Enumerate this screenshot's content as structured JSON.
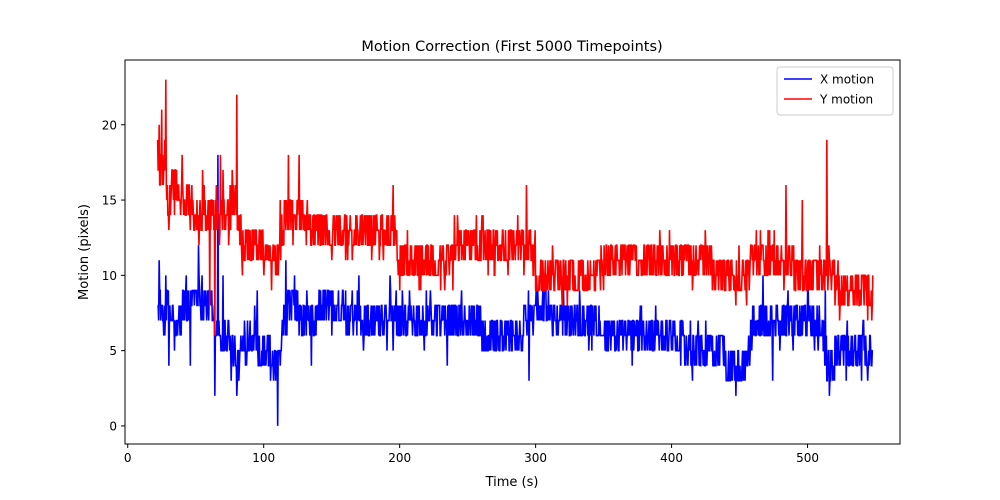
{
  "chart_data": {
    "type": "line",
    "title": "Motion Correction (First 5000 Timepoints)",
    "xlabel": "Time (s)",
    "ylabel": "Motion (pixels)",
    "xlim": [
      -2,
      568
    ],
    "ylim": [
      -1.2,
      24.3
    ],
    "xticks": [
      0,
      100,
      200,
      300,
      400,
      500
    ],
    "yticks": [
      0,
      5,
      10,
      15,
      20
    ],
    "grid": false,
    "legend_position": "top-right",
    "x_range": [
      22,
      548
    ],
    "series": [
      {
        "name": "X motion",
        "color": "#0000ff",
        "profile": [
          [
            22,
            8
          ],
          [
            25,
            7
          ],
          [
            30,
            8
          ],
          [
            35,
            6
          ],
          [
            40,
            7.5
          ],
          [
            45,
            8
          ],
          [
            50,
            9
          ],
          [
            55,
            8.5
          ],
          [
            60,
            8
          ],
          [
            65,
            7
          ],
          [
            70,
            6
          ],
          [
            75,
            6
          ],
          [
            80,
            4
          ],
          [
            85,
            5
          ],
          [
            90,
            6
          ],
          [
            95,
            5.5
          ],
          [
            100,
            5
          ],
          [
            105,
            4.5
          ],
          [
            110,
            4
          ],
          [
            115,
            7
          ],
          [
            120,
            8
          ],
          [
            125,
            7.5
          ],
          [
            130,
            7
          ],
          [
            140,
            7.5
          ],
          [
            150,
            7.5
          ],
          [
            160,
            7.5
          ],
          [
            170,
            7
          ],
          [
            180,
            7
          ],
          [
            190,
            7
          ],
          [
            195,
            8
          ],
          [
            200,
            7
          ],
          [
            210,
            6.5
          ],
          [
            220,
            7
          ],
          [
            230,
            7
          ],
          [
            240,
            6.5
          ],
          [
            250,
            6.5
          ],
          [
            260,
            6.5
          ],
          [
            270,
            6
          ],
          [
            280,
            6
          ],
          [
            290,
            6
          ],
          [
            295,
            8
          ],
          [
            300,
            7.5
          ],
          [
            310,
            7.5
          ],
          [
            320,
            7
          ],
          [
            330,
            6.5
          ],
          [
            340,
            6.5
          ],
          [
            350,
            6.5
          ],
          [
            360,
            6
          ],
          [
            370,
            6
          ],
          [
            380,
            6
          ],
          [
            390,
            6
          ],
          [
            400,
            6
          ],
          [
            410,
            5.5
          ],
          [
            420,
            5
          ],
          [
            430,
            4.5
          ],
          [
            440,
            4.5
          ],
          [
            450,
            4
          ],
          [
            455,
            4
          ],
          [
            460,
            7
          ],
          [
            470,
            7
          ],
          [
            480,
            7
          ],
          [
            490,
            7.5
          ],
          [
            500,
            7
          ],
          [
            510,
            7
          ],
          [
            515,
            4
          ],
          [
            520,
            4.5
          ],
          [
            530,
            4.5
          ],
          [
            540,
            4.5
          ],
          [
            548,
            4.5
          ]
        ],
        "spikes": [
          [
            23,
            11
          ],
          [
            30,
            4
          ],
          [
            46,
            4
          ],
          [
            52,
            12
          ],
          [
            64,
            2
          ],
          [
            66,
            18
          ],
          [
            70,
            10
          ],
          [
            76,
            3
          ],
          [
            80,
            2
          ],
          [
            95,
            9
          ],
          [
            105,
            3
          ],
          [
            110,
            0
          ],
          [
            116,
            11
          ],
          [
            135,
            4
          ],
          [
            170,
            10
          ],
          [
            195,
            5
          ],
          [
            235,
            4
          ],
          [
            295,
            3
          ],
          [
            320,
            10
          ],
          [
            371,
            13
          ],
          [
            371,
            4
          ],
          [
            415,
            3
          ],
          [
            447,
            2
          ],
          [
            467,
            10
          ],
          [
            474,
            3
          ],
          [
            500,
            10
          ],
          [
            513,
            9
          ],
          [
            516,
            2
          ],
          [
            544,
            3
          ]
        ]
      },
      {
        "name": "Y motion",
        "color": "#ff0000",
        "profile": [
          [
            22,
            18
          ],
          [
            25,
            17
          ],
          [
            30,
            15
          ],
          [
            35,
            16
          ],
          [
            40,
            14.5
          ],
          [
            45,
            15
          ],
          [
            50,
            14
          ],
          [
            55,
            13.5
          ],
          [
            60,
            13.5
          ],
          [
            65,
            13.5
          ],
          [
            70,
            14
          ],
          [
            75,
            14.5
          ],
          [
            80,
            14.5
          ],
          [
            85,
            11.5
          ],
          [
            90,
            11.5
          ],
          [
            95,
            11.5
          ],
          [
            100,
            11.5
          ],
          [
            105,
            11
          ],
          [
            110,
            11
          ],
          [
            115,
            13.5
          ],
          [
            120,
            14
          ],
          [
            125,
            13.5
          ],
          [
            130,
            14
          ],
          [
            135,
            13
          ],
          [
            140,
            13
          ],
          [
            150,
            12.5
          ],
          [
            160,
            12.5
          ],
          [
            170,
            12.5
          ],
          [
            180,
            12.5
          ],
          [
            190,
            12.5
          ],
          [
            197,
            13
          ],
          [
            200,
            10.5
          ],
          [
            210,
            10.5
          ],
          [
            220,
            11
          ],
          [
            230,
            11
          ],
          [
            240,
            11.5
          ],
          [
            250,
            11.5
          ],
          [
            260,
            11.5
          ],
          [
            270,
            11.5
          ],
          [
            280,
            11.5
          ],
          [
            290,
            11.5
          ],
          [
            295,
            12.5
          ],
          [
            300,
            10.5
          ],
          [
            310,
            10
          ],
          [
            320,
            10
          ],
          [
            330,
            10
          ],
          [
            340,
            10
          ],
          [
            350,
            10.5
          ],
          [
            360,
            10.5
          ],
          [
            370,
            10.5
          ],
          [
            380,
            10.5
          ],
          [
            390,
            10.5
          ],
          [
            400,
            10.5
          ],
          [
            410,
            10.5
          ],
          [
            420,
            10.5
          ],
          [
            430,
            10.5
          ],
          [
            440,
            10
          ],
          [
            450,
            10
          ],
          [
            455,
            10
          ],
          [
            460,
            11
          ],
          [
            470,
            10.5
          ],
          [
            480,
            11
          ],
          [
            490,
            10.5
          ],
          [
            500,
            10
          ],
          [
            510,
            10
          ],
          [
            515,
            10.5
          ],
          [
            520,
            9.5
          ],
          [
            530,
            9
          ],
          [
            540,
            9
          ],
          [
            548,
            9.5
          ]
        ],
        "spikes": [
          [
            23,
            20
          ],
          [
            25,
            21
          ],
          [
            27,
            19
          ],
          [
            28,
            23
          ],
          [
            30,
            13
          ],
          [
            40,
            18
          ],
          [
            46,
            13
          ],
          [
            55,
            17
          ],
          [
            60,
            8
          ],
          [
            64,
            6
          ],
          [
            68,
            18
          ],
          [
            70,
            17
          ],
          [
            74,
            12
          ],
          [
            80,
            22
          ],
          [
            84,
            10
          ],
          [
            90,
            13
          ],
          [
            100,
            10
          ],
          [
            112,
            15
          ],
          [
            118,
            18
          ],
          [
            126,
            18
          ],
          [
            135,
            12
          ],
          [
            150,
            11
          ],
          [
            195,
            16
          ],
          [
            200,
            9
          ],
          [
            230,
            9
          ],
          [
            265,
            10
          ],
          [
            293,
            16
          ],
          [
            300,
            9
          ],
          [
            371,
            8
          ],
          [
            371,
            12
          ],
          [
            455,
            8
          ],
          [
            462,
            13
          ],
          [
            474,
            12
          ],
          [
            484,
            16
          ],
          [
            496,
            15
          ],
          [
            514,
            19
          ],
          [
            520,
            8
          ],
          [
            530,
            8
          ],
          [
            544,
            7
          ],
          [
            548,
            10
          ]
        ]
      }
    ]
  }
}
